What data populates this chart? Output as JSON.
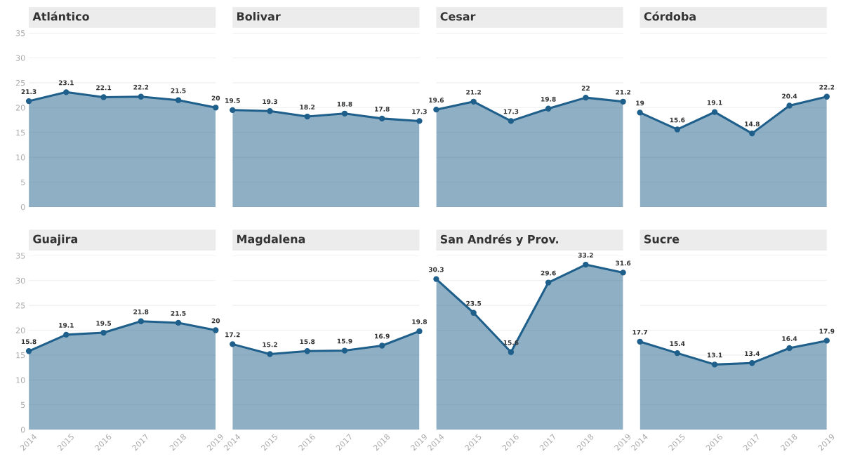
{
  "chart_data": [
    {
      "type": "area",
      "title": "Atlántico",
      "categories": [
        "2014",
        "2015",
        "2016",
        "2017",
        "2018",
        "2019"
      ],
      "series": [
        {
          "color": "#1f5f8b",
          "values": [
            21.3,
            23.1,
            22.1,
            22.2,
            21.5,
            20
          ]
        }
      ],
      "data_labels": true,
      "ylim": [
        0,
        35
      ],
      "yticks": [
        0,
        5,
        10,
        15,
        20,
        25,
        30,
        35
      ],
      "tick_labels": "y",
      "grid": "y",
      "marker": "circle"
    },
    {
      "type": "area",
      "title": "Bolivar",
      "categories": [
        "2014",
        "2015",
        "2016",
        "2017",
        "2018",
        "2019"
      ],
      "series": [
        {
          "color": "#1f5f8b",
          "values": [
            19.5,
            19.3,
            18.2,
            18.8,
            17.8,
            17.3
          ]
        }
      ],
      "data_labels": true,
      "ylim": [
        0,
        35
      ],
      "yticks": [
        0,
        5,
        10,
        15,
        20,
        25,
        30,
        35
      ],
      "tick_labels": false,
      "grid": "y",
      "marker": "circle"
    },
    {
      "type": "area",
      "title": "Cesar",
      "categories": [
        "2014",
        "2015",
        "2016",
        "2017",
        "2018",
        "2019"
      ],
      "series": [
        {
          "color": "#1f5f8b",
          "values": [
            19.6,
            21.2,
            17.3,
            19.8,
            22,
            21.2
          ]
        }
      ],
      "data_labels": true,
      "ylim": [
        0,
        35
      ],
      "yticks": [
        0,
        5,
        10,
        15,
        20,
        25,
        30,
        35
      ],
      "tick_labels": false,
      "grid": "y",
      "marker": "circle"
    },
    {
      "type": "area",
      "title": "Córdoba",
      "categories": [
        "2014",
        "2015",
        "2016",
        "2017",
        "2018",
        "2019"
      ],
      "series": [
        {
          "color": "#1f5f8b",
          "values": [
            19,
            15.6,
            19.1,
            14.8,
            20.4,
            22.2
          ]
        }
      ],
      "data_labels": true,
      "ylim": [
        0,
        35
      ],
      "yticks": [
        0,
        5,
        10,
        15,
        20,
        25,
        30,
        35
      ],
      "tick_labels": false,
      "grid": "y",
      "marker": "circle"
    },
    {
      "type": "area",
      "title": "Guajira",
      "categories": [
        "2014",
        "2015",
        "2016",
        "2017",
        "2018",
        "2019"
      ],
      "series": [
        {
          "color": "#1f5f8b",
          "values": [
            15.8,
            19.1,
            19.5,
            21.8,
            21.5,
            20
          ]
        }
      ],
      "data_labels": true,
      "ylim": [
        0,
        35
      ],
      "yticks": [
        0,
        5,
        10,
        15,
        20,
        25,
        30,
        35
      ],
      "grid": "y",
      "marker": "circle"
    },
    {
      "type": "area",
      "title": "Magdalena",
      "categories": [
        "2014",
        "2015",
        "2016",
        "2017",
        "2018",
        "2019"
      ],
      "series": [
        {
          "color": "#1f5f8b",
          "values": [
            17.2,
            15.2,
            15.8,
            15.9,
            16.9,
            19.8
          ]
        }
      ],
      "data_labels": true,
      "ylim": [
        0,
        35
      ],
      "yticks": [
        0,
        5,
        10,
        15,
        20,
        25,
        30,
        35
      ],
      "tick_labels": "x",
      "grid": "y",
      "marker": "circle"
    },
    {
      "type": "area",
      "title": "San Andrés y Prov.",
      "categories": [
        "2014",
        "2015",
        "2016",
        "2017",
        "2018",
        "2019"
      ],
      "series": [
        {
          "color": "#1f5f8b",
          "values": [
            30.3,
            23.5,
            15.6,
            29.6,
            33.2,
            31.6
          ]
        }
      ],
      "data_labels": true,
      "ylim": [
        0,
        35
      ],
      "yticks": [
        0,
        5,
        10,
        15,
        20,
        25,
        30,
        35
      ],
      "tick_labels": "x",
      "grid": "y",
      "marker": "circle"
    },
    {
      "type": "area",
      "title": "Sucre",
      "categories": [
        "2014",
        "2015",
        "2016",
        "2017",
        "2018",
        "2019"
      ],
      "series": [
        {
          "color": "#1f5f8b",
          "values": [
            17.7,
            15.4,
            13.1,
            13.4,
            16.4,
            17.9
          ]
        }
      ],
      "data_labels": true,
      "ylim": [
        0,
        35
      ],
      "yticks": [
        0,
        5,
        10,
        15,
        20,
        25,
        30,
        35
      ],
      "tick_labels": "x",
      "grid": "y",
      "marker": "circle"
    }
  ]
}
